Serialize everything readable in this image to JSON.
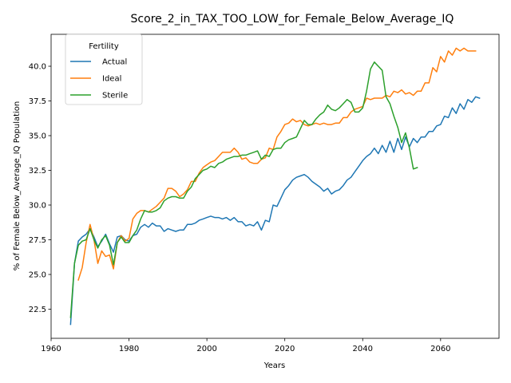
{
  "chart_data": {
    "type": "line",
    "title": "Score_2_in_TAX_TOO_LOW_for_Female_Below_Average_IQ",
    "xlabel": "Years",
    "ylabel": "% of Female Below_Average_IQ Population",
    "xlim": [
      1960,
      2075
    ],
    "ylim": [
      20.4,
      42.3
    ],
    "xticks": [
      1960,
      1980,
      2000,
      2020,
      2040,
      2060
    ],
    "yticks": [
      22.5,
      25.0,
      27.5,
      30.0,
      32.5,
      35.0,
      37.5,
      40.0
    ],
    "ytick_labels": [
      "22.5",
      "25.0",
      "27.5",
      "30.0",
      "32.5",
      "35.0",
      "37.5",
      "40.0"
    ],
    "grid": false,
    "legend": {
      "title": "Fertility",
      "placement": "top-left"
    },
    "series": [
      {
        "name": "Actual",
        "color": "#1f77b4",
        "points": [
          [
            1965,
            21.4
          ],
          [
            1966,
            25.8
          ],
          [
            1967,
            27.4
          ],
          [
            1968,
            27.7
          ],
          [
            1969,
            27.9
          ],
          [
            1970,
            28.3
          ],
          [
            1971,
            27.7
          ],
          [
            1972,
            27.0
          ],
          [
            1973,
            27.4
          ],
          [
            1974,
            27.9
          ],
          [
            1975,
            27.2
          ],
          [
            1976,
            26.6
          ],
          [
            1977,
            27.7
          ],
          [
            1978,
            27.8
          ],
          [
            1979,
            27.5
          ],
          [
            1980,
            27.4
          ],
          [
            1981,
            27.8
          ],
          [
            1982,
            27.9
          ],
          [
            1983,
            28.4
          ],
          [
            1984,
            28.6
          ],
          [
            1985,
            28.4
          ],
          [
            1986,
            28.7
          ],
          [
            1987,
            28.5
          ],
          [
            1988,
            28.5
          ],
          [
            1989,
            28.1
          ],
          [
            1990,
            28.3
          ],
          [
            1991,
            28.2
          ],
          [
            1992,
            28.1
          ],
          [
            1993,
            28.2
          ],
          [
            1994,
            28.2
          ],
          [
            1995,
            28.6
          ],
          [
            1996,
            28.6
          ],
          [
            1997,
            28.7
          ],
          [
            1998,
            28.9
          ],
          [
            1999,
            29.0
          ],
          [
            2000,
            29.1
          ],
          [
            2001,
            29.2
          ],
          [
            2002,
            29.1
          ],
          [
            2003,
            29.1
          ],
          [
            2004,
            29.0
          ],
          [
            2005,
            29.1
          ],
          [
            2006,
            28.9
          ],
          [
            2007,
            29.1
          ],
          [
            2008,
            28.8
          ],
          [
            2009,
            28.8
          ],
          [
            2010,
            28.5
          ],
          [
            2011,
            28.6
          ],
          [
            2012,
            28.5
          ],
          [
            2013,
            28.8
          ],
          [
            2014,
            28.2
          ],
          [
            2015,
            28.9
          ],
          [
            2016,
            28.8
          ],
          [
            2017,
            30.0
          ],
          [
            2018,
            29.9
          ],
          [
            2019,
            30.5
          ],
          [
            2020,
            31.1
          ],
          [
            2021,
            31.4
          ],
          [
            2022,
            31.8
          ],
          [
            2023,
            32.0
          ],
          [
            2024,
            32.1
          ],
          [
            2025,
            32.2
          ],
          [
            2026,
            32.0
          ],
          [
            2027,
            31.7
          ],
          [
            2028,
            31.5
          ],
          [
            2029,
            31.3
          ],
          [
            2030,
            31.0
          ],
          [
            2031,
            31.2
          ],
          [
            2032,
            30.8
          ],
          [
            2033,
            31.0
          ],
          [
            2034,
            31.1
          ],
          [
            2035,
            31.4
          ],
          [
            2036,
            31.8
          ],
          [
            2037,
            32.0
          ],
          [
            2038,
            32.4
          ],
          [
            2039,
            32.8
          ],
          [
            2040,
            33.2
          ],
          [
            2041,
            33.5
          ],
          [
            2042,
            33.7
          ],
          [
            2043,
            34.1
          ],
          [
            2044,
            33.7
          ],
          [
            2045,
            34.3
          ],
          [
            2046,
            33.8
          ],
          [
            2047,
            34.6
          ],
          [
            2048,
            33.8
          ],
          [
            2049,
            34.8
          ],
          [
            2050,
            34.0
          ],
          [
            2051,
            34.9
          ],
          [
            2052,
            34.2
          ],
          [
            2053,
            34.8
          ],
          [
            2054,
            34.5
          ],
          [
            2055,
            34.9
          ],
          [
            2056,
            34.9
          ],
          [
            2057,
            35.3
          ],
          [
            2058,
            35.3
          ],
          [
            2059,
            35.7
          ],
          [
            2060,
            35.8
          ],
          [
            2061,
            36.4
          ],
          [
            2062,
            36.3
          ],
          [
            2063,
            37.0
          ],
          [
            2064,
            36.6
          ],
          [
            2065,
            37.3
          ],
          [
            2066,
            36.9
          ],
          [
            2067,
            37.6
          ],
          [
            2068,
            37.4
          ],
          [
            2069,
            37.8
          ],
          [
            2070,
            37.7
          ]
        ]
      },
      {
        "name": "Ideal",
        "color": "#ff7f0e",
        "points": [
          [
            1967,
            24.6
          ],
          [
            1968,
            25.5
          ],
          [
            1969,
            27.3
          ],
          [
            1970,
            28.6
          ],
          [
            1971,
            27.5
          ],
          [
            1972,
            25.8
          ],
          [
            1973,
            26.7
          ],
          [
            1974,
            26.3
          ],
          [
            1975,
            26.4
          ],
          [
            1976,
            25.4
          ],
          [
            1977,
            27.3
          ],
          [
            1978,
            27.8
          ],
          [
            1979,
            27.4
          ],
          [
            1980,
            27.6
          ],
          [
            1981,
            29.0
          ],
          [
            1982,
            29.4
          ],
          [
            1983,
            29.6
          ],
          [
            1984,
            29.6
          ],
          [
            1985,
            29.5
          ],
          [
            1986,
            29.7
          ],
          [
            1987,
            29.9
          ],
          [
            1988,
            30.2
          ],
          [
            1989,
            30.5
          ],
          [
            1990,
            31.2
          ],
          [
            1991,
            31.2
          ],
          [
            1992,
            31.0
          ],
          [
            1993,
            30.6
          ],
          [
            1994,
            30.8
          ],
          [
            1995,
            31.1
          ],
          [
            1996,
            31.7
          ],
          [
            1997,
            31.7
          ],
          [
            1998,
            32.3
          ],
          [
            1999,
            32.7
          ],
          [
            2000,
            32.9
          ],
          [
            2001,
            33.1
          ],
          [
            2002,
            33.2
          ],
          [
            2003,
            33.5
          ],
          [
            2004,
            33.8
          ],
          [
            2005,
            33.8
          ],
          [
            2006,
            33.8
          ],
          [
            2007,
            34.1
          ],
          [
            2008,
            33.8
          ],
          [
            2009,
            33.3
          ],
          [
            2010,
            33.4
          ],
          [
            2011,
            33.1
          ],
          [
            2012,
            33.0
          ],
          [
            2013,
            33.0
          ],
          [
            2014,
            33.3
          ],
          [
            2015,
            33.4
          ],
          [
            2016,
            34.1
          ],
          [
            2017,
            34.0
          ],
          [
            2018,
            34.9
          ],
          [
            2019,
            35.3
          ],
          [
            2020,
            35.8
          ],
          [
            2021,
            35.9
          ],
          [
            2022,
            36.2
          ],
          [
            2023,
            36.0
          ],
          [
            2024,
            36.1
          ],
          [
            2025,
            35.8
          ],
          [
            2026,
            35.7
          ],
          [
            2027,
            35.8
          ],
          [
            2028,
            35.9
          ],
          [
            2029,
            35.8
          ],
          [
            2030,
            35.9
          ],
          [
            2031,
            35.8
          ],
          [
            2032,
            35.8
          ],
          [
            2033,
            35.9
          ],
          [
            2034,
            35.9
          ],
          [
            2035,
            36.3
          ],
          [
            2036,
            36.3
          ],
          [
            2037,
            36.7
          ],
          [
            2038,
            36.9
          ],
          [
            2039,
            37.0
          ],
          [
            2040,
            37.1
          ],
          [
            2041,
            37.7
          ],
          [
            2042,
            37.6
          ],
          [
            2043,
            37.7
          ],
          [
            2044,
            37.7
          ],
          [
            2045,
            37.7
          ],
          [
            2046,
            37.9
          ],
          [
            2047,
            37.8
          ],
          [
            2048,
            38.2
          ],
          [
            2049,
            38.1
          ],
          [
            2050,
            38.3
          ],
          [
            2051,
            38.0
          ],
          [
            2052,
            38.1
          ],
          [
            2053,
            37.9
          ],
          [
            2054,
            38.2
          ],
          [
            2055,
            38.2
          ],
          [
            2056,
            38.8
          ],
          [
            2057,
            38.8
          ],
          [
            2058,
            39.9
          ],
          [
            2059,
            39.6
          ],
          [
            2060,
            40.7
          ],
          [
            2061,
            40.3
          ],
          [
            2062,
            41.1
          ],
          [
            2063,
            40.8
          ],
          [
            2064,
            41.3
          ],
          [
            2065,
            41.1
          ],
          [
            2066,
            41.3
          ],
          [
            2067,
            41.1
          ],
          [
            2068,
            41.1
          ],
          [
            2069,
            41.1
          ]
        ]
      },
      {
        "name": "Sterile",
        "color": "#2ca02c",
        "points": [
          [
            1965,
            21.9
          ],
          [
            1966,
            25.8
          ],
          [
            1967,
            27.1
          ],
          [
            1968,
            27.4
          ],
          [
            1969,
            27.5
          ],
          [
            1970,
            28.3
          ],
          [
            1971,
            27.5
          ],
          [
            1972,
            26.9
          ],
          [
            1973,
            27.5
          ],
          [
            1974,
            27.8
          ],
          [
            1975,
            27.1
          ],
          [
            1976,
            25.7
          ],
          [
            1977,
            27.3
          ],
          [
            1978,
            27.7
          ],
          [
            1979,
            27.3
          ],
          [
            1980,
            27.3
          ],
          [
            1981,
            27.8
          ],
          [
            1982,
            28.2
          ],
          [
            1983,
            29.0
          ],
          [
            1984,
            29.6
          ],
          [
            1985,
            29.5
          ],
          [
            1986,
            29.5
          ],
          [
            1987,
            29.6
          ],
          [
            1988,
            29.8
          ],
          [
            1989,
            30.3
          ],
          [
            1990,
            30.5
          ],
          [
            1991,
            30.6
          ],
          [
            1992,
            30.6
          ],
          [
            1993,
            30.5
          ],
          [
            1994,
            30.5
          ],
          [
            1995,
            31.0
          ],
          [
            1996,
            31.3
          ],
          [
            1997,
            31.9
          ],
          [
            1998,
            32.2
          ],
          [
            1999,
            32.5
          ],
          [
            2000,
            32.6
          ],
          [
            2001,
            32.8
          ],
          [
            2002,
            32.7
          ],
          [
            2003,
            33.0
          ],
          [
            2004,
            33.1
          ],
          [
            2005,
            33.3
          ],
          [
            2006,
            33.4
          ],
          [
            2007,
            33.5
          ],
          [
            2008,
            33.5
          ],
          [
            2009,
            33.6
          ],
          [
            2010,
            33.6
          ],
          [
            2011,
            33.7
          ],
          [
            2012,
            33.8
          ],
          [
            2013,
            33.9
          ],
          [
            2014,
            33.3
          ],
          [
            2015,
            33.6
          ],
          [
            2016,
            33.5
          ],
          [
            2017,
            34.0
          ],
          [
            2018,
            34.1
          ],
          [
            2019,
            34.1
          ],
          [
            2020,
            34.5
          ],
          [
            2021,
            34.7
          ],
          [
            2022,
            34.8
          ],
          [
            2023,
            34.9
          ],
          [
            2024,
            35.5
          ],
          [
            2025,
            36.1
          ],
          [
            2026,
            35.8
          ],
          [
            2027,
            35.8
          ],
          [
            2028,
            36.2
          ],
          [
            2029,
            36.5
          ],
          [
            2030,
            36.7
          ],
          [
            2031,
            37.2
          ],
          [
            2032,
            36.9
          ],
          [
            2033,
            36.8
          ],
          [
            2034,
            37.0
          ],
          [
            2035,
            37.3
          ],
          [
            2036,
            37.6
          ],
          [
            2037,
            37.4
          ],
          [
            2038,
            36.7
          ],
          [
            2039,
            36.7
          ],
          [
            2040,
            37.0
          ],
          [
            2041,
            38.2
          ],
          [
            2042,
            39.8
          ],
          [
            2043,
            40.3
          ],
          [
            2044,
            40.0
          ],
          [
            2045,
            39.7
          ],
          [
            2046,
            37.8
          ],
          [
            2047,
            37.3
          ],
          [
            2048,
            36.4
          ],
          [
            2049,
            35.6
          ],
          [
            2050,
            34.5
          ],
          [
            2051,
            35.2
          ],
          [
            2052,
            34.1
          ],
          [
            2053,
            32.6
          ],
          [
            2054,
            32.7
          ]
        ]
      }
    ]
  }
}
